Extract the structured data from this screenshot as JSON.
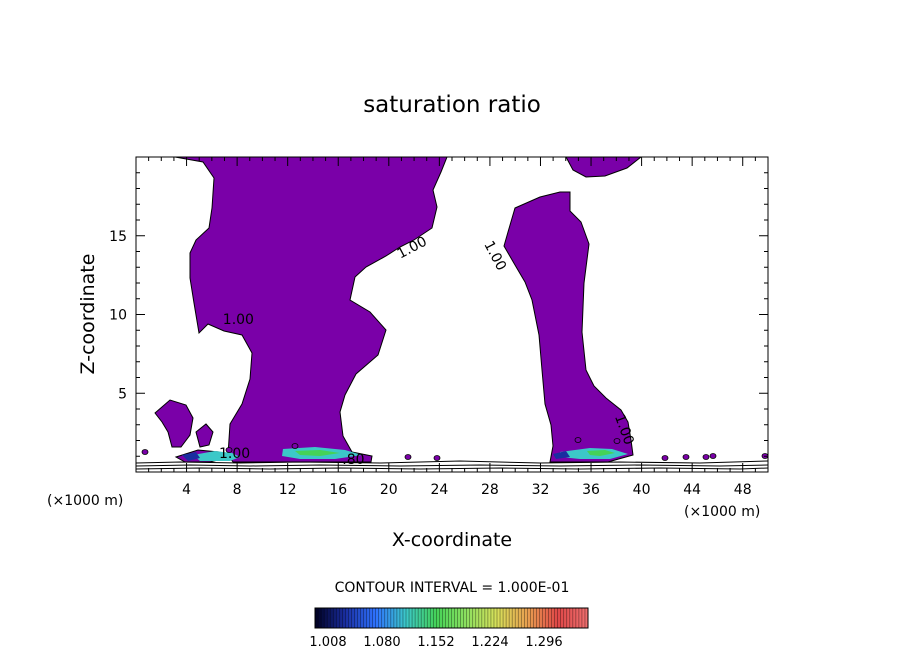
{
  "chart_data": {
    "type": "contour",
    "title": "saturation ratio",
    "xlabel": "X-coordinate",
    "ylabel": "Z-coordinate",
    "x_unit": "(×1000 m)",
    "z_unit": "(×1000 m)",
    "xlim": [
      0,
      50
    ],
    "ylim": [
      0,
      20
    ],
    "x_ticks": [
      4,
      8,
      12,
      16,
      20,
      24,
      28,
      32,
      36,
      40,
      44,
      48
    ],
    "y_ticks": [
      5,
      10,
      15
    ],
    "fill_color": "#7a00a8",
    "contour_interval_text": "CONTOUR INTERVAL = 1.000E-01",
    "contour_labels": [
      {
        "text": "1.00",
        "x": 22.0,
        "z": 14.0,
        "angle": -28
      },
      {
        "text": "1.00",
        "x": 28.1,
        "z": 13.6,
        "angle": 62
      },
      {
        "text": "1.00",
        "x": 8.1,
        "z": 9.4,
        "angle": 0
      },
      {
        "text": "1.00",
        "x": 7.8,
        "z": 0.9,
        "angle": 0
      },
      {
        "text": ".80",
        "x": 17.2,
        "z": 0.5,
        "angle": 0
      },
      {
        "text": "1.00",
        "x": 38.3,
        "z": 2.6,
        "angle": 70
      }
    ],
    "colorbar": {
      "ticks": [
        "1.008",
        "1.080",
        "1.152",
        "1.224",
        "1.296"
      ],
      "colors": [
        "#000022",
        "#1a2ea0",
        "#2f73ff",
        "#3cc8c8",
        "#45d258",
        "#8ee060",
        "#d8e05a",
        "#e8a050",
        "#e04848",
        "#f07070"
      ]
    }
  }
}
